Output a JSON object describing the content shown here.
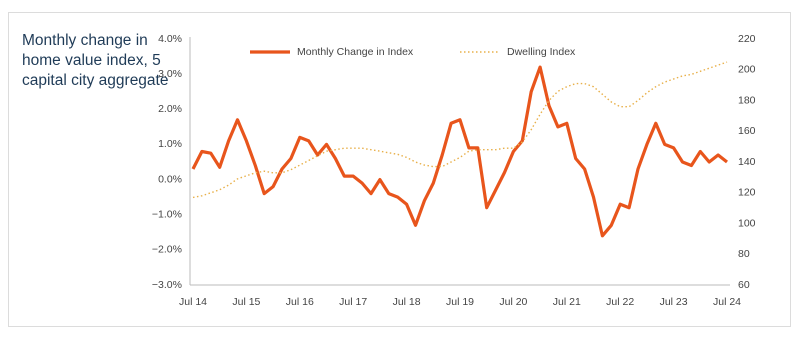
{
  "chart_data": {
    "type": "line",
    "title": "Monthly change in home value index, 5 capital city aggregate",
    "categories": [
      "Jul 14",
      null,
      null,
      null,
      null,
      null,
      "Jul 15",
      null,
      null,
      null,
      null,
      null,
      "Jul 16",
      null,
      null,
      null,
      null,
      null,
      "Jul 17",
      null,
      null,
      null,
      null,
      null,
      "Jul 18",
      null,
      null,
      null,
      null,
      null,
      "Jul 19",
      null,
      null,
      null,
      null,
      null,
      "Jul 20",
      null,
      null,
      null,
      null,
      null,
      "Jul 21",
      null,
      null,
      null,
      null,
      null,
      "Jul 22",
      null,
      null,
      null,
      null,
      null,
      "Jul 23",
      null,
      null,
      null,
      null,
      null,
      "Jul 24"
    ],
    "series": [
      {
        "name": "Monthly Change in Index",
        "color": "#e8551c",
        "style": "solid",
        "values": [
          0.3,
          0.8,
          0.75,
          0.35,
          1.1,
          1.7,
          1.1,
          0.4,
          -0.4,
          -0.2,
          0.3,
          0.6,
          1.2,
          1.1,
          0.7,
          1.0,
          0.6,
          0.1,
          0.1,
          -0.1,
          -0.4,
          0.0,
          -0.4,
          -0.5,
          -0.7,
          -1.3,
          -0.6,
          -0.1,
          0.7,
          1.6,
          1.7,
          0.9,
          0.9,
          -0.8,
          -0.3,
          0.2,
          0.8,
          1.1,
          2.5,
          3.2,
          2.1,
          1.5,
          1.6,
          0.6,
          0.3,
          -0.5,
          -1.6,
          -1.3,
          -0.7,
          -0.8,
          0.3,
          1.0,
          1.6,
          1.0,
          0.9,
          0.5,
          0.4,
          0.8,
          0.5,
          0.7,
          0.5
        ]
      },
      {
        "name": "Dwelling Index",
        "color": "#e8b04a",
        "style": "dotted",
        "axis": "y2",
        "values": [
          117,
          118,
          120,
          122,
          125,
          129,
          131,
          133,
          134,
          133,
          133,
          135,
          138,
          141,
          144,
          147,
          148,
          149,
          149,
          149,
          148,
          147,
          146,
          145,
          143,
          140,
          138,
          137,
          137,
          140,
          143,
          147,
          148,
          148,
          148,
          149,
          149,
          153,
          161,
          171,
          180,
          186,
          189,
          191,
          191,
          189,
          184,
          179,
          176,
          176,
          180,
          185,
          189,
          192,
          194,
          196,
          197,
          199,
          201,
          203,
          205
        ]
      }
    ],
    "ylim": [
      -3,
      4
    ],
    "yticks": [
      {
        "value": -3,
        "label": "−3.0%"
      },
      {
        "value": -2,
        "label": "−2.0%"
      },
      {
        "value": -1,
        "label": "−1.0%"
      },
      {
        "value": 0,
        "label": "0.0%"
      },
      {
        "value": 1,
        "label": "1.0%"
      },
      {
        "value": 2,
        "label": "2.0%"
      },
      {
        "value": 3,
        "label": "3.0%"
      },
      {
        "value": 4,
        "label": "4.0%"
      }
    ],
    "y2lim": [
      60,
      220
    ],
    "y2ticks": [
      60,
      80,
      100,
      120,
      140,
      160,
      180,
      200,
      220
    ],
    "grid": false
  }
}
